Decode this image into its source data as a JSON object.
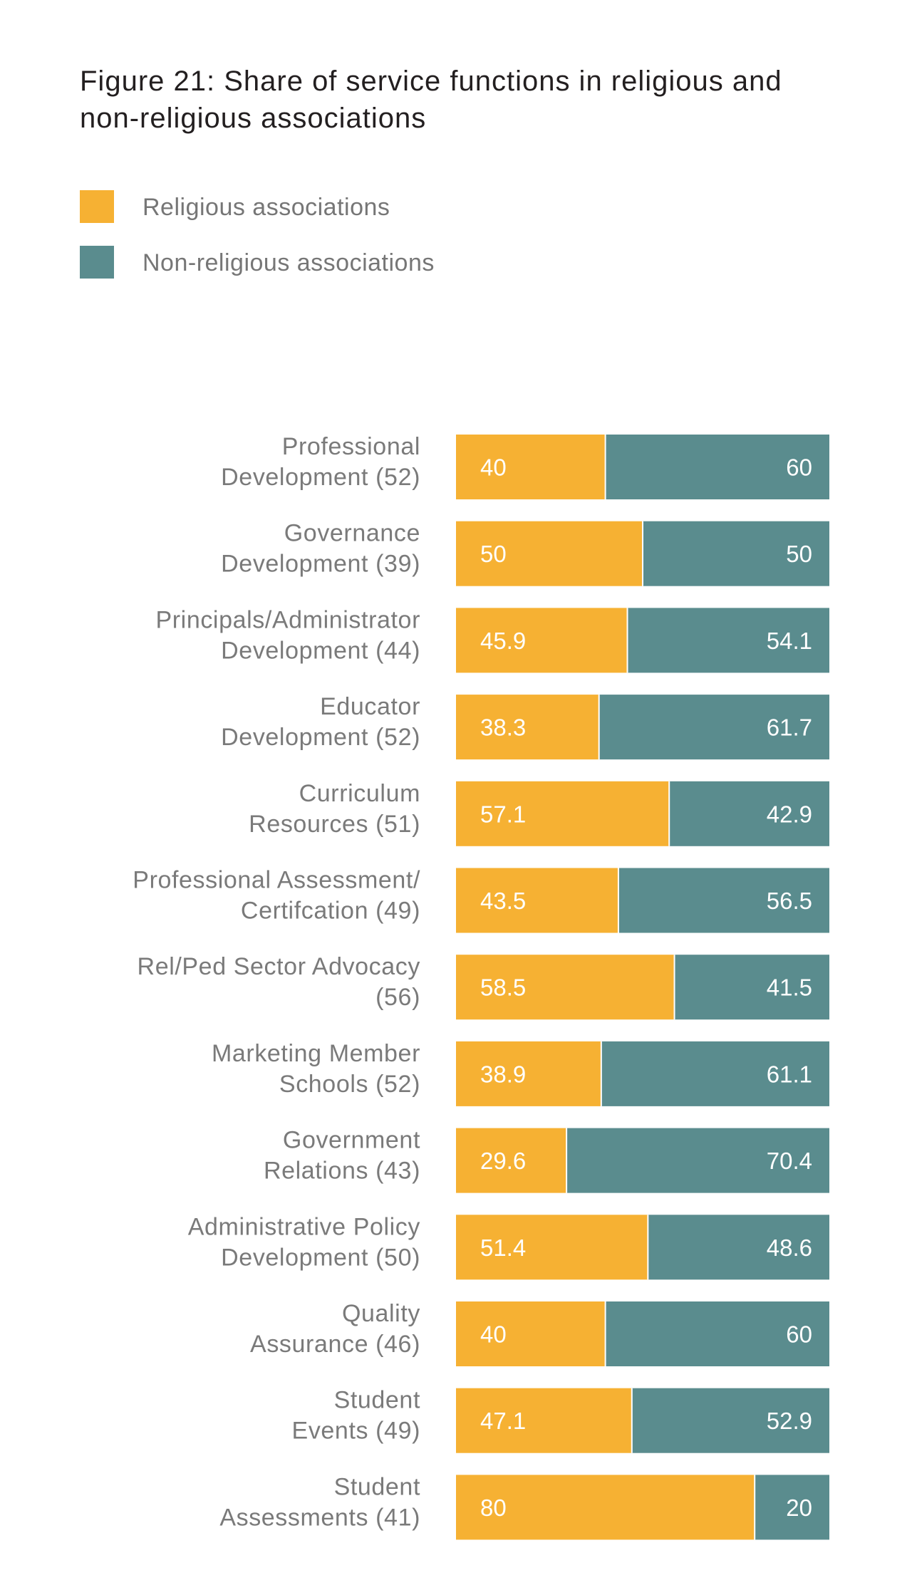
{
  "chart_data": {
    "type": "bar",
    "orientation": "horizontal",
    "stacked": true,
    "percent_stacked": true,
    "title": "Figure 21: Share of service functions in religious and non-religious associations",
    "legend_position": "top-left",
    "grid": false,
    "xlim": [
      0,
      100
    ],
    "categories": [
      [
        "Professional",
        "Development (52)"
      ],
      [
        "Governance",
        "Development (39)"
      ],
      [
        "Principals/Administrator",
        "Development (44)"
      ],
      [
        "Educator",
        "Development (52)"
      ],
      [
        "Curriculum",
        "Resources (51)"
      ],
      [
        "Professional Assessment/",
        "Certifcation (49)"
      ],
      [
        "Rel/Ped Sector Advocacy",
        "(56)"
      ],
      [
        "Marketing Member",
        "Schools (52)"
      ],
      [
        "Government",
        "Relations (43)"
      ],
      [
        "Administrative Policy",
        "Development (50)"
      ],
      [
        "Quality",
        "Assurance (46)"
      ],
      [
        "Student",
        "Events (49)"
      ],
      [
        "Student",
        "Assessments (41)"
      ]
    ],
    "series": [
      {
        "name": "Religious associations",
        "color": "#f6b133",
        "values": [
          40,
          50,
          45.9,
          38.3,
          57.1,
          43.5,
          58.5,
          38.9,
          29.6,
          51.4,
          40,
          47.1,
          80
        ],
        "labels": [
          "40",
          "50",
          "45.9",
          "38.3",
          "57.1",
          "43.5",
          "58.5",
          "38.9",
          "29.6",
          "51.4",
          "40",
          "47.1",
          "80"
        ]
      },
      {
        "name": "Non-religious associations",
        "color": "#5a8c8e",
        "values": [
          60,
          50,
          54.1,
          61.7,
          42.9,
          56.5,
          41.5,
          61.1,
          70.4,
          48.6,
          60,
          52.9,
          20
        ],
        "labels": [
          "60",
          "50",
          "54.1",
          "61.7",
          "42.9",
          "56.5",
          "41.5",
          "61.1",
          "70.4",
          "48.6",
          "60",
          "52.9",
          "20"
        ]
      }
    ]
  }
}
